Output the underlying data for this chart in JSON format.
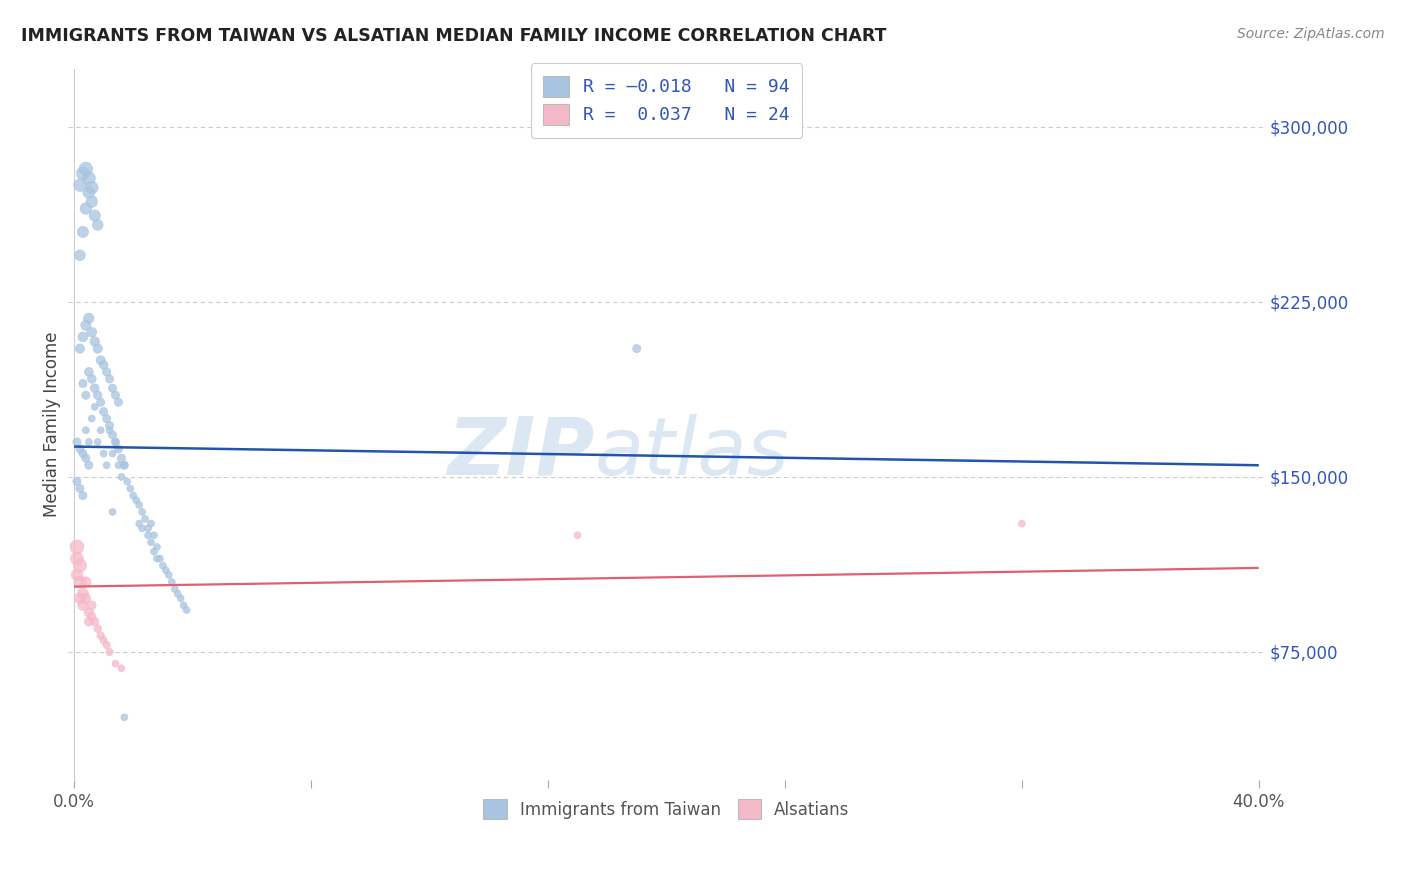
{
  "title": "IMMIGRANTS FROM TAIWAN VS ALSATIAN MEDIAN FAMILY INCOME CORRELATION CHART",
  "source": "Source: ZipAtlas.com",
  "ylabel": "Median Family Income",
  "yticks": [
    75000,
    150000,
    225000,
    300000
  ],
  "ytick_labels": [
    "$75,000",
    "$150,000",
    "$225,000",
    "$300,000"
  ],
  "ylim": [
    20000,
    325000
  ],
  "xlim": [
    -0.002,
    0.402
  ],
  "taiwan_color": "#a8c4e0",
  "alsatian_color": "#f5b8c8",
  "taiwan_line_color": "#2255aa",
  "alsatian_line_color": "#e06070",
  "taiwan_scatter_x": [
    0.004,
    0.005,
    0.006,
    0.007,
    0.008,
    0.009,
    0.01,
    0.011,
    0.012,
    0.013,
    0.014,
    0.015,
    0.016,
    0.017,
    0.018,
    0.019,
    0.02,
    0.021,
    0.022,
    0.023,
    0.024,
    0.025,
    0.026,
    0.027,
    0.028,
    0.029,
    0.03,
    0.031,
    0.032,
    0.033,
    0.034,
    0.035,
    0.036,
    0.037,
    0.038,
    0.003,
    0.004,
    0.005,
    0.006,
    0.007,
    0.008,
    0.009,
    0.01,
    0.011,
    0.012,
    0.013,
    0.014,
    0.015,
    0.016,
    0.017,
    0.002,
    0.003,
    0.004,
    0.005,
    0.006,
    0.007,
    0.008,
    0.009,
    0.01,
    0.011,
    0.012,
    0.013,
    0.014,
    0.015,
    0.002,
    0.003,
    0.004,
    0.005,
    0.006,
    0.007,
    0.008,
    0.002,
    0.003,
    0.004,
    0.005,
    0.006,
    0.001,
    0.002,
    0.003,
    0.004,
    0.005,
    0.001,
    0.002,
    0.003,
    0.013,
    0.022,
    0.023,
    0.025,
    0.026,
    0.027,
    0.028,
    0.017,
    0.19
  ],
  "taiwan_scatter_y": [
    170000,
    165000,
    175000,
    180000,
    165000,
    170000,
    160000,
    155000,
    170000,
    160000,
    165000,
    155000,
    150000,
    155000,
    148000,
    145000,
    142000,
    140000,
    138000,
    135000,
    132000,
    128000,
    130000,
    125000,
    120000,
    115000,
    112000,
    110000,
    108000,
    105000,
    102000,
    100000,
    98000,
    95000,
    93000,
    190000,
    185000,
    195000,
    192000,
    188000,
    185000,
    182000,
    178000,
    175000,
    172000,
    168000,
    165000,
    162000,
    158000,
    155000,
    205000,
    210000,
    215000,
    218000,
    212000,
    208000,
    205000,
    200000,
    198000,
    195000,
    192000,
    188000,
    185000,
    182000,
    245000,
    255000,
    265000,
    272000,
    268000,
    262000,
    258000,
    275000,
    280000,
    282000,
    278000,
    274000,
    165000,
    162000,
    160000,
    158000,
    155000,
    148000,
    145000,
    142000,
    135000,
    130000,
    128000,
    125000,
    122000,
    118000,
    115000,
    47000,
    205000
  ],
  "taiwan_scatter_s": [
    25,
    25,
    25,
    25,
    25,
    25,
    25,
    25,
    25,
    25,
    25,
    25,
    25,
    25,
    25,
    25,
    25,
    25,
    25,
    25,
    25,
    25,
    25,
    25,
    25,
    25,
    25,
    25,
    25,
    25,
    25,
    25,
    25,
    25,
    25,
    35,
    35,
    40,
    40,
    40,
    38,
    35,
    35,
    35,
    35,
    35,
    35,
    35,
    35,
    35,
    45,
    50,
    55,
    55,
    50,
    48,
    45,
    42,
    40,
    38,
    35,
    35,
    35,
    35,
    60,
    65,
    70,
    75,
    70,
    65,
    60,
    80,
    90,
    95,
    88,
    82,
    35,
    35,
    35,
    35,
    35,
    35,
    35,
    35,
    25,
    25,
    25,
    25,
    25,
    25,
    25,
    25,
    35
  ],
  "alsatian_scatter_x": [
    0.001,
    0.001,
    0.001,
    0.002,
    0.002,
    0.002,
    0.003,
    0.003,
    0.004,
    0.004,
    0.005,
    0.005,
    0.006,
    0.006,
    0.007,
    0.008,
    0.009,
    0.01,
    0.011,
    0.012,
    0.014,
    0.016,
    0.32,
    0.17
  ],
  "alsatian_scatter_y": [
    120000,
    115000,
    108000,
    112000,
    105000,
    98000,
    100000,
    95000,
    105000,
    98000,
    92000,
    88000,
    95000,
    90000,
    88000,
    85000,
    82000,
    80000,
    78000,
    75000,
    70000,
    68000,
    130000,
    125000
  ],
  "alsatian_scatter_s": [
    100,
    85,
    70,
    90,
    75,
    60,
    65,
    55,
    55,
    50,
    45,
    42,
    40,
    38,
    35,
    32,
    30,
    28,
    28,
    28,
    25,
    25,
    25,
    25
  ],
  "taiwan_trend_x": [
    0.0,
    0.4
  ],
  "taiwan_trend_y": [
    163000,
    155000
  ],
  "alsatian_trend_x": [
    0.0,
    0.4
  ],
  "alsatian_trend_y": [
    103000,
    111000
  ],
  "watermark_text": "ZIP",
  "watermark_text2": "atlas",
  "bg_color": "#ffffff",
  "grid_color": "#cccccc",
  "xticks": [
    0.0,
    0.08,
    0.16,
    0.24,
    0.32,
    0.4
  ],
  "xtick_labels": [
    "0.0%",
    "",
    "",
    "",
    "",
    "40.0%"
  ]
}
